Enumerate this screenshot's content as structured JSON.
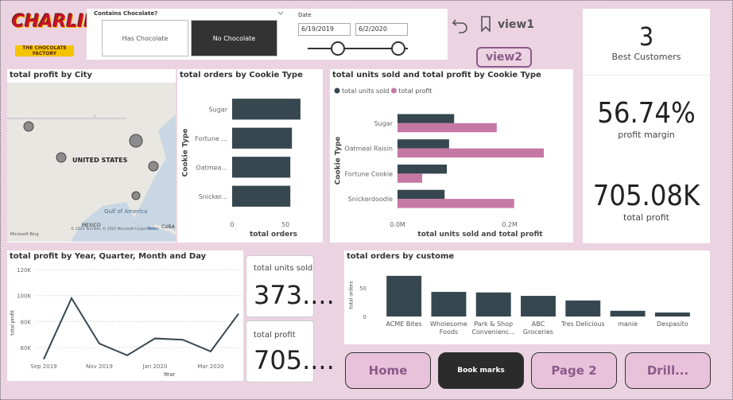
{
  "logo": {
    "name": "CHARLIE",
    "subtitle": "THE CHOCOLATE FACTORY"
  },
  "slicer": {
    "title": "Contains Chocolate?",
    "options": [
      "Has Chocolate",
      "No Chocolate"
    ],
    "selected": 1
  },
  "date_slicer": {
    "title": "Date",
    "start": "6/19/2019",
    "end": "6/2/2020"
  },
  "bookmarks": [
    "view1",
    "view2"
  ],
  "map": {
    "title": "total profit by City",
    "labels": [
      "UNITED STATES",
      "Gulf of America",
      "MEXICO",
      "CUBA"
    ],
    "attribution": "Microsoft Bing",
    "copyright": "© 2025 TomTom, © 2025 Microsoft Corporation",
    "terms": "Terms"
  },
  "kpi_cards": [
    {
      "value": "3",
      "label": "Best Customers"
    },
    {
      "value": "56.74%",
      "label": "profit margin"
    },
    {
      "value": "705.08K",
      "label": "total profit"
    },
    {
      "label": "total units sold",
      "value": "373...."
    },
    {
      "label": "total profit",
      "value": "705...."
    }
  ],
  "buttons": [
    "Home",
    "Book marks",
    "Page 2",
    "Drill..."
  ],
  "chart_data": [
    {
      "type": "hbar",
      "title": "total orders by Cookie Type",
      "categories": [
        "Sugar",
        "Fortune ...",
        "Oatmea...",
        "Snicker..."
      ],
      "values": [
        64,
        56,
        54.5,
        54.5
      ],
      "color": "#37474f",
      "xlim": [
        0,
        70
      ],
      "xticks": [
        0,
        50
      ],
      "xlabel": "total orders",
      "ylabel": "Cookie Type"
    },
    {
      "type": "hbar",
      "title": "total units sold and total profit by Cookie Type",
      "categories": [
        "Sugar",
        "Oatmeal Raisin",
        "Fortune Cookie",
        "Snickerdoodle"
      ],
      "series": [
        {
          "name": "total units sold",
          "color": "#37474f",
          "values": [
            101000,
            92000,
            88000,
            84000
          ]
        },
        {
          "name": "total profit",
          "color": "#c678a5",
          "values": [
            177000,
            261000,
            44000,
            208000
          ]
        }
      ],
      "xlim": [
        0,
        285000
      ],
      "xticks": [
        {
          "value": 0,
          "label": "0.0M"
        },
        {
          "value": 200000,
          "label": "0.2M"
        }
      ],
      "xlabel": "total units sold and total profit",
      "ylabel": "Cookie Type",
      "legend": "top-left"
    },
    {
      "type": "line",
      "title": "total profit by Year, Quarter, Month and Day",
      "x": [
        "2019-09",
        "2019-10",
        "2019-11",
        "2019-12",
        "2020-01",
        "2020-02",
        "2020-03",
        "2020-04"
      ],
      "values": [
        51000,
        98000,
        63000,
        54000,
        67000,
        66000,
        57000,
        86000
      ],
      "color": "#37474f",
      "xlim": [
        "2019-09",
        "2020-04"
      ],
      "xticks": [
        {
          "value": "2019-09",
          "label": "Sep 2019"
        },
        {
          "value": "2019-11",
          "label": "Nov 2019"
        },
        {
          "value": "2020-01",
          "label": "Jan 2020"
        },
        {
          "value": "2020-03",
          "label": "Mar 2020"
        }
      ],
      "ylim": [
        48000,
        124000
      ],
      "yticks": [
        {
          "value": 60000,
          "label": "60K"
        },
        {
          "value": 80000,
          "label": "80K"
        },
        {
          "value": 100000,
          "label": "100K"
        },
        {
          "value": 120000,
          "label": "120K"
        }
      ],
      "xlabel": "Year",
      "ylabel": "total profit",
      "grid": true
    },
    {
      "type": "bar",
      "title": "total orders by custome",
      "categories": [
        "ACME Bites",
        "Wholesome Foods",
        "Park & Shop Convenienc...",
        "ABC Groceries",
        "Tres Delicious",
        "manie",
        "Despasito"
      ],
      "values": [
        71,
        43,
        42,
        36,
        28,
        10,
        7
      ],
      "color": "#37474f",
      "ylim": [
        0,
        80
      ],
      "yticks": [
        0,
        50
      ],
      "ylabel": "total orders"
    }
  ]
}
